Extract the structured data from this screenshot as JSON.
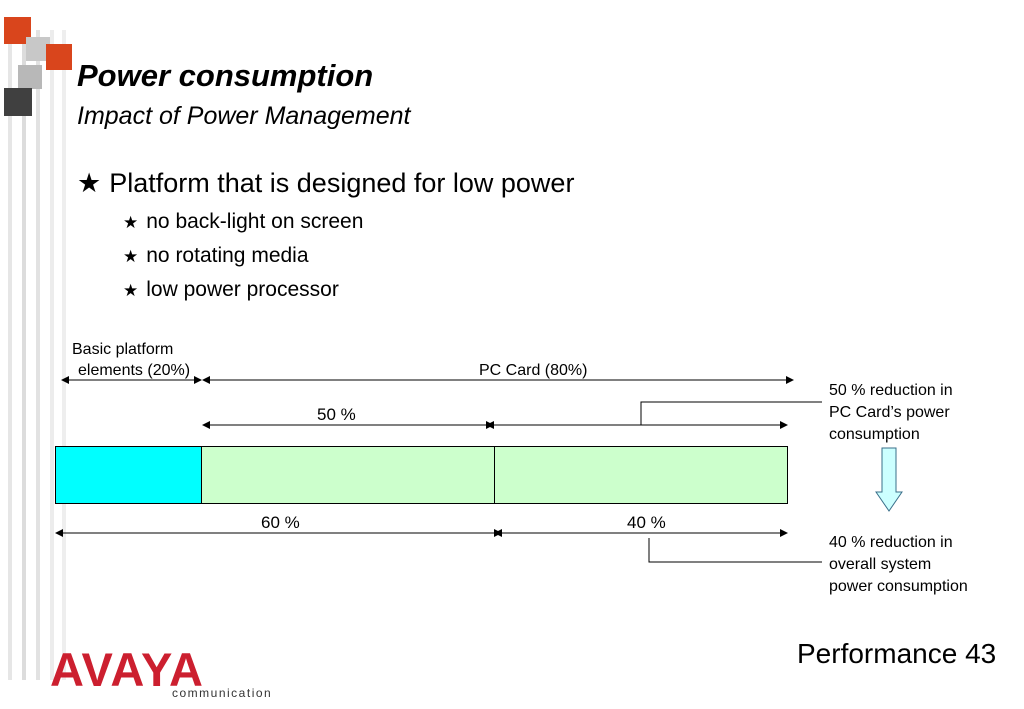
{
  "slide": {
    "title": "Power consumption",
    "subtitle": "Impact of Power Management",
    "bullet_main": "Platform that is designed for low power",
    "sub_bullets": [
      "no back-light on screen",
      "no rotating media",
      "low power processor"
    ]
  },
  "diagram": {
    "top_label_left_line1": "Basic platform",
    "top_label_left_line2": "elements (20%)",
    "top_label_right": "PC Card (80%)",
    "mid_label": "50 %",
    "bottom_label_left": "60 %",
    "bottom_label_right": "40 %",
    "note_top": [
      "50 % reduction in",
      "PC Card’s power",
      "consumption"
    ],
    "note_bottom": [
      "40 % reduction in",
      "overall system",
      "power consumption"
    ],
    "colors": {
      "basic_platform": "#00ffff",
      "pc_card": "#ccffcc",
      "arrow": "#ccffff"
    }
  },
  "footer": {
    "label": "Performance 43"
  },
  "logo": {
    "name": "AVAYA",
    "tagline": "communication"
  },
  "icons": {
    "bullet": "star-icon",
    "down_arrow": "down-arrow-icon"
  }
}
